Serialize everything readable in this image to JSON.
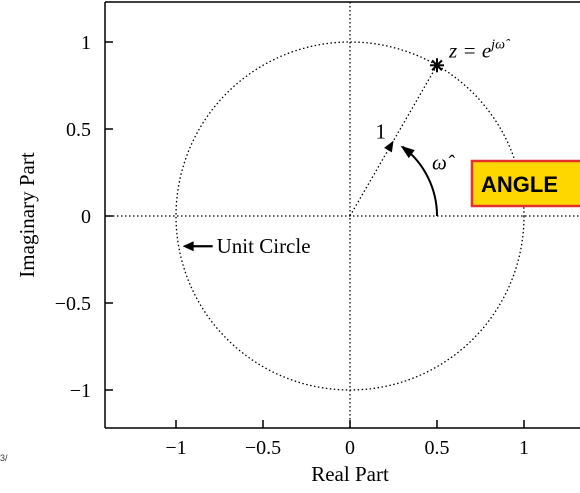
{
  "chart_data": {
    "type": "scatter",
    "xlabel": "Real Part",
    "ylabel": "Imaginary Part",
    "xlim": [
      -1.4,
      1.4
    ],
    "ylim": [
      -1.2,
      1.2
    ],
    "x_ticks": [
      -1,
      -0.5,
      0,
      0.5,
      1
    ],
    "x_tick_labels": [
      "−1",
      "−0.5",
      "0",
      "0.5",
      "1"
    ],
    "y_ticks": [
      1,
      0.5,
      0,
      -0.5,
      -1
    ],
    "y_tick_labels": [
      "1",
      "0.5",
      "0",
      "−0.5",
      "−1"
    ],
    "grid": false,
    "unit_circle": {
      "radius": 1,
      "label": "Unit Circle",
      "arrow_angle_deg": 190
    },
    "point": {
      "x": 0.5,
      "y": 0.866,
      "label_prefix": "z = e",
      "label_exponent": "j",
      "label_omega": "ω̂"
    },
    "radius_label": "1",
    "angle_label": "ω̂",
    "angle_box": {
      "text": "ANGLE",
      "fill": "#ffd700",
      "border": "#e53030"
    },
    "corner_note": "3/"
  }
}
